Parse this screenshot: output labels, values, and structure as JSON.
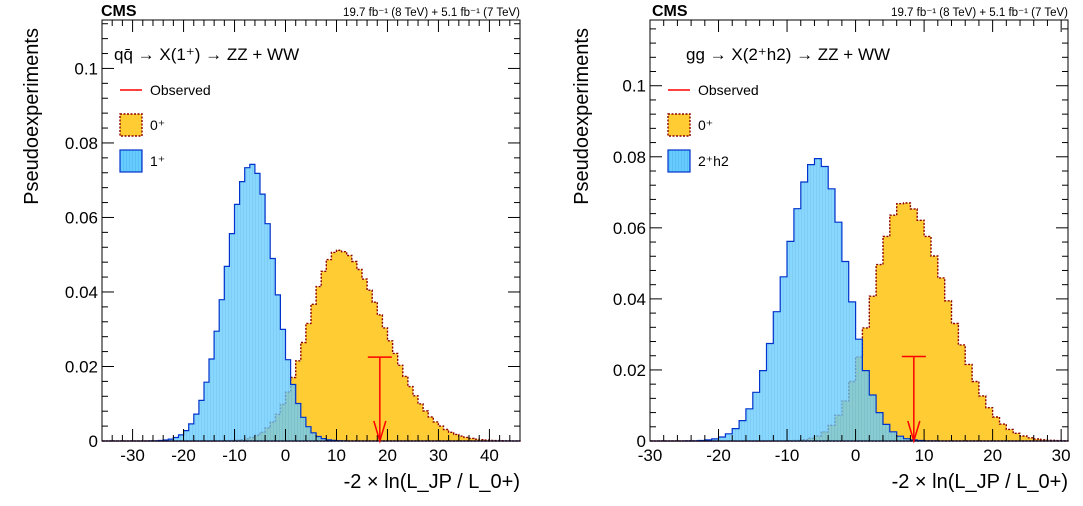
{
  "colors": {
    "signal_fill": "#FFCC33",
    "signal_edge": "#8B0000",
    "alt_fill": "#66CCFF",
    "alt_edge": "#0033CC",
    "observed": "#FF0000"
  },
  "chart_data": [
    {
      "type": "histogram",
      "experiment": "CMS",
      "lumi": "19.7 fb⁻¹ (8 TeV) + 5.1 fb⁻¹ (7 TeV)",
      "process": "qq̄ → X(1⁺) → ZZ + WW",
      "xlabel": "-2 × ln(L_JP / L_0+)",
      "ylabel": "Pseudoexperiments",
      "xlim": [
        -36,
        46
      ],
      "ylim": [
        0,
        0.113
      ],
      "xticks": [
        -30,
        -20,
        -10,
        0,
        10,
        20,
        30,
        40
      ],
      "yticks": [
        0,
        0.02,
        0.04,
        0.06,
        0.08,
        0.1
      ],
      "ytick_labels": [
        "0",
        "0.02",
        "0.04",
        "0.06",
        "0.08",
        "0.1"
      ],
      "legend": {
        "placement": "top-left",
        "observed": "Observed",
        "signal": "0⁺",
        "alternative": "1⁺"
      },
      "series": [
        {
          "name": "0⁺",
          "role": "signal",
          "mean": 10.4,
          "peak": 0.0512,
          "sigma_left": 6.0,
          "sigma_right": 8.9
        },
        {
          "name": "1⁺",
          "role": "alternative",
          "mean": -6.7,
          "peak": 0.0743,
          "sigma_left": 5.0,
          "sigma_right": 4.6
        }
      ],
      "observed": {
        "x": 18.5,
        "y_top": 0.0225
      }
    },
    {
      "type": "histogram",
      "experiment": "CMS",
      "lumi": "19.7 fb⁻¹ (8 TeV) + 5.1 fb⁻¹ (7 TeV)",
      "process": "gg → X(2⁺h2) → ZZ + WW",
      "xlabel": "-2 × ln(L_JP / L_0+)",
      "ylabel": "Pseudoexperiments",
      "xlim": [
        -30,
        31
      ],
      "ylim": [
        0,
        0.1185
      ],
      "xticks": [
        -30,
        -20,
        -10,
        0,
        10,
        20,
        30
      ],
      "yticks": [
        0,
        0.02,
        0.04,
        0.06,
        0.08,
        0.1
      ],
      "ytick_labels": [
        "0",
        "0.02",
        "0.04",
        "0.06",
        "0.08",
        "0.1"
      ],
      "legend": {
        "placement": "top-left",
        "observed": "Observed",
        "signal": "0⁺",
        "alternative": "2⁺h2"
      },
      "series": [
        {
          "name": "0⁺",
          "role": "signal",
          "mean": 7.0,
          "peak": 0.0672,
          "sigma_left": 4.5,
          "sigma_right": 6.3
        },
        {
          "name": "2⁺h2",
          "role": "alternative",
          "mean": -5.5,
          "peak": 0.0795,
          "sigma_left": 4.8,
          "sigma_right": 4.2
        }
      ],
      "observed": {
        "x": 8.5,
        "y_top": 0.0238
      }
    }
  ]
}
